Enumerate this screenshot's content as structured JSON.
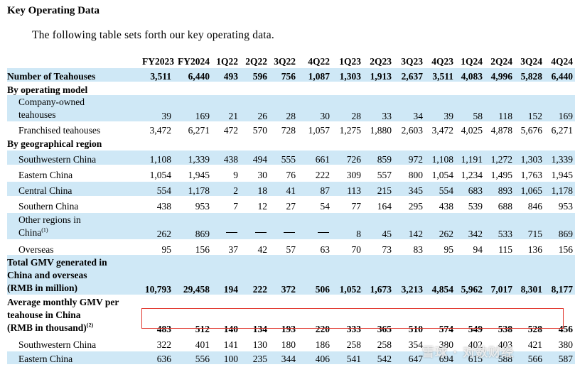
{
  "heading": "Key Operating Data",
  "intro": "The following table sets forth our key operating data.",
  "columns": [
    "FY2023",
    "FY2024",
    "1Q22",
    "2Q22",
    "3Q22",
    "4Q22",
    "1Q23",
    "2Q23",
    "3Q23",
    "4Q23",
    "1Q24",
    "2Q24",
    "3Q24",
    "4Q24"
  ],
  "rows": [
    {
      "label": "Number of Teahouses",
      "values": [
        "3,511",
        "6,440",
        "493",
        "596",
        "756",
        "1,087",
        "1,303",
        "1,913",
        "2,637",
        "3,511",
        "4,083",
        "4,996",
        "5,828",
        "6,440"
      ]
    },
    {
      "label": "By operating model"
    },
    {
      "label": "Company-owned teahouses",
      "values": [
        "39",
        "169",
        "21",
        "26",
        "28",
        "30",
        "28",
        "33",
        "34",
        "39",
        "58",
        "118",
        "152",
        "169"
      ]
    },
    {
      "label": "Franchised teahouses",
      "values": [
        "3,472",
        "6,271",
        "472",
        "570",
        "728",
        "1,057",
        "1,275",
        "1,880",
        "2,603",
        "3,472",
        "4,025",
        "4,878",
        "5,676",
        "6,271"
      ]
    },
    {
      "label": "By geographical region"
    },
    {
      "label": "Southwestern China",
      "values": [
        "1,108",
        "1,339",
        "438",
        "494",
        "555",
        "661",
        "726",
        "859",
        "972",
        "1,108",
        "1,191",
        "1,272",
        "1,303",
        "1,339"
      ]
    },
    {
      "label": "Eastern China",
      "values": [
        "1,054",
        "1,945",
        "9",
        "30",
        "76",
        "222",
        "309",
        "557",
        "800",
        "1,054",
        "1,234",
        "1,495",
        "1,763",
        "1,945"
      ]
    },
    {
      "label": "Central China",
      "values": [
        "554",
        "1,178",
        "2",
        "18",
        "41",
        "87",
        "113",
        "215",
        "345",
        "554",
        "683",
        "893",
        "1,065",
        "1,178"
      ]
    },
    {
      "label": "Southern China",
      "values": [
        "438",
        "953",
        "7",
        "12",
        "27",
        "54",
        "77",
        "164",
        "295",
        "438",
        "539",
        "688",
        "846",
        "953"
      ]
    },
    {
      "label": "Other regions in China",
      "note": "(1)",
      "values": [
        "262",
        "869",
        "—",
        "—",
        "—",
        "—",
        "8",
        "45",
        "142",
        "262",
        "342",
        "533",
        "715",
        "869"
      ]
    },
    {
      "label": "Overseas",
      "values": [
        "95",
        "156",
        "37",
        "42",
        "57",
        "63",
        "70",
        "73",
        "83",
        "95",
        "94",
        "115",
        "136",
        "156"
      ]
    },
    {
      "label": "Total GMV generated in China and overseas (RMB in million)",
      "values": [
        "10,793",
        "29,458",
        "194",
        "222",
        "372",
        "506",
        "1,052",
        "1,673",
        "3,213",
        "4,854",
        "5,962",
        "7,017",
        "8,301",
        "8,177"
      ]
    },
    {
      "label": "Average monthly GMV per teahouse in China (RMB in thousand)",
      "note": "(2)",
      "values": [
        "483",
        "512",
        "140",
        "134",
        "193",
        "220",
        "333",
        "365",
        "510",
        "574",
        "549",
        "538",
        "528",
        "456"
      ]
    },
    {
      "label": "Southwestern China",
      "values": [
        "322",
        "401",
        "141",
        "130",
        "180",
        "186",
        "258",
        "258",
        "354",
        "380",
        "402",
        "403",
        "421",
        "380"
      ]
    },
    {
      "label": "Eastern China",
      "values": [
        "636",
        "556",
        "100",
        "235",
        "344",
        "406",
        "541",
        "542",
        "647",
        "694",
        "615",
        "588",
        "566",
        "587"
      ]
    }
  ],
  "watermark": "雪球 · 对数财经",
  "colors": {
    "shade": "#cfe8f6",
    "highlight": "#e0342b"
  }
}
